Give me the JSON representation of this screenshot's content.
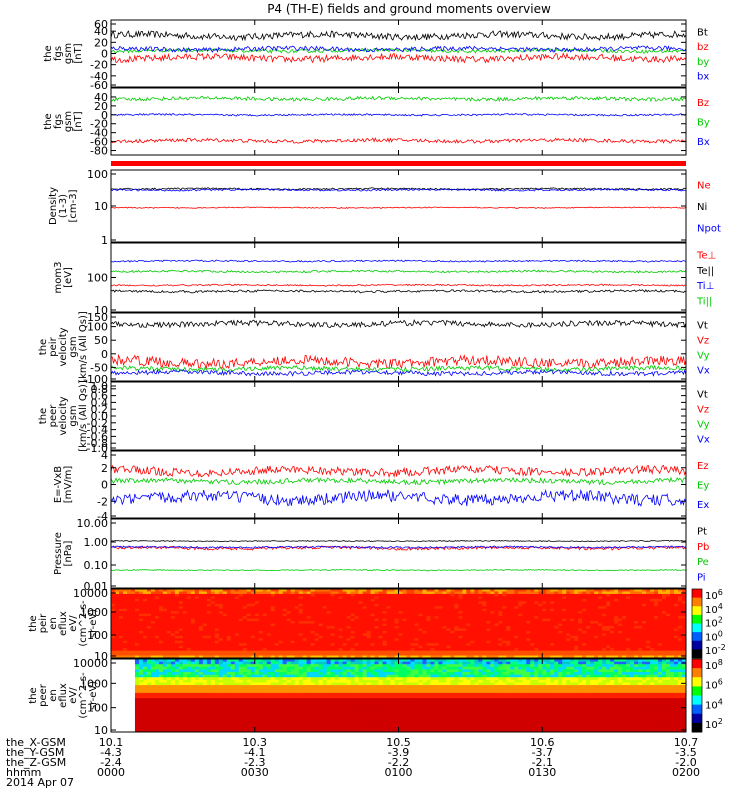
{
  "title": "P4 (TH-E) fields and ground moments overview",
  "chart_data": [
    {
      "id": "p1",
      "type": "line",
      "ylabel": [
        "the",
        "fgs",
        "gsm",
        "[nT]"
      ],
      "ylim": [
        -60,
        60
      ],
      "yticks": [
        "60",
        "40",
        "20",
        "0",
        "-20",
        "-40",
        "-60"
      ],
      "series": [
        {
          "name": "Bt",
          "color": "#000000",
          "level": 32,
          "noise": 6
        },
        {
          "name": "bz",
          "color": "#ff0000",
          "level": -8,
          "noise": 6
        },
        {
          "name": "by",
          "color": "#00cc00",
          "level": 5,
          "noise": 3
        },
        {
          "name": "bx",
          "color": "#0000ff",
          "level": 8,
          "noise": 4
        }
      ]
    },
    {
      "id": "p2",
      "type": "line",
      "ylabel": [
        "the",
        "fgs",
        "gsm",
        "[nT]"
      ],
      "ylim": [
        -90,
        60
      ],
      "yticks": [
        "40",
        "20",
        "0",
        "-20",
        "-40",
        "-60",
        "-80"
      ],
      "series": [
        {
          "name": "Bz",
          "color": "#ff0000",
          "level": -58,
          "noise": 4
        },
        {
          "name": "By",
          "color": "#00cc00",
          "level": 36,
          "noise": 4
        },
        {
          "name": "Bx",
          "color": "#0000ff",
          "level": 0,
          "noise": 2
        }
      ]
    },
    {
      "id": "p3",
      "type": "line",
      "log": true,
      "ylabel": [
        "Density",
        "(1-3)",
        "[cm-3]"
      ],
      "ylim": [
        1,
        100
      ],
      "yticks": [
        "100",
        "10",
        "1"
      ],
      "series": [
        {
          "name": "Ne",
          "color": "#ff0000",
          "level": 9,
          "noise": 0.3
        },
        {
          "name": "Ni",
          "color": "#000000",
          "level": 30,
          "noise": 1.5
        },
        {
          "name": "Npot",
          "color": "#0000ff",
          "level": 28,
          "noise": 1.5
        }
      ]
    },
    {
      "id": "p4",
      "type": "line",
      "log": true,
      "ylabel": [
        "mom3",
        "[eV]"
      ],
      "ylim": [
        10,
        1000
      ],
      "yticks": [
        "100",
        "10"
      ],
      "series": [
        {
          "name": "Te⊥",
          "color": "#ff0000",
          "level": 60,
          "noise": 3
        },
        {
          "name": "Te||",
          "color": "#000000",
          "level": 40,
          "noise": 3
        },
        {
          "name": "Ti⊥",
          "color": "#0000ff",
          "level": 300,
          "noise": 15
        },
        {
          "name": "Ti||",
          "color": "#00cc00",
          "level": 150,
          "noise": 10
        }
      ]
    },
    {
      "id": "p5",
      "type": "line",
      "ylabel": [
        "the",
        "peir",
        "velocity",
        "gsm",
        "[km/s (All Qs)]"
      ],
      "ylim": [
        -100,
        150
      ],
      "yticks": [
        "150",
        "100",
        "50",
        "0",
        "-50",
        "-100"
      ],
      "series": [
        {
          "name": "Vt",
          "color": "#000000",
          "level": 110,
          "noise": 10
        },
        {
          "name": "Vz",
          "color": "#ff0000",
          "level": -30,
          "noise": 18
        },
        {
          "name": "Vy",
          "color": "#00cc00",
          "level": -55,
          "noise": 8
        },
        {
          "name": "Vx",
          "color": "#0000ff",
          "level": -70,
          "noise": 8
        }
      ]
    },
    {
      "id": "p6",
      "type": "line",
      "ylabel": [
        "the",
        "peer",
        "velocity",
        "gsm",
        "[km/s (All Qs)]"
      ],
      "ylim": [
        -1,
        1
      ],
      "yticks": [
        "1.0",
        "0.8",
        "0.6",
        "0.4",
        "0.2",
        "0.0",
        "-0.2",
        "-0.4",
        "-0.6",
        "-0.8",
        "-1.0"
      ],
      "series": [
        {
          "name": "Vt",
          "color": "#000000"
        },
        {
          "name": "Vz",
          "color": "#ff0000"
        },
        {
          "name": "Vy",
          "color": "#00cc00"
        },
        {
          "name": "Vx",
          "color": "#0000ff"
        }
      ]
    },
    {
      "id": "p7",
      "type": "line",
      "ylabel": [
        "E=-VxB",
        "[mV/m]"
      ],
      "ylim": [
        -4,
        4
      ],
      "yticks": [
        "4",
        "2",
        "0",
        "-2",
        "-4"
      ],
      "series": [
        {
          "name": "Ez",
          "color": "#ff0000",
          "level": 1.6,
          "noise": 0.5
        },
        {
          "name": "Ey",
          "color": "#00cc00",
          "level": 0.4,
          "noise": 0.3
        },
        {
          "name": "Ex",
          "color": "#0000ff",
          "level": -1.6,
          "noise": 0.7
        }
      ]
    },
    {
      "id": "p8",
      "type": "line",
      "log": true,
      "ylabel": [
        "Pressure",
        "[nPa]"
      ],
      "ylim": [
        0.01,
        10
      ],
      "yticks": [
        "10.00",
        "1.00",
        "0.10",
        "0.01"
      ],
      "series": [
        {
          "name": "Pt",
          "color": "#000000",
          "level": 1.1,
          "noise": 0.05
        },
        {
          "name": "Pb",
          "color": "#ff0000",
          "level": 0.55,
          "noise": 0.08
        },
        {
          "name": "Pe",
          "color": "#00cc00",
          "level": 0.06,
          "noise": 0.003
        },
        {
          "name": "Pi",
          "color": "#0000ff",
          "level": 0.6,
          "noise": 0.05
        }
      ]
    },
    {
      "id": "p9",
      "type": "heatmap",
      "ylabel": [
        "the",
        "peir",
        "en",
        "eflux",
        "eV/",
        "(cm^2-s-",
        "sr-eV)"
      ],
      "ylim": [
        10,
        10000
      ],
      "yticks": [
        "10000",
        "1000",
        "100",
        "10"
      ],
      "colorbar": {
        "ticks": [
          "10^6",
          "10^4",
          "10^2",
          "10^0",
          "10^-2"
        ]
      }
    },
    {
      "id": "p10",
      "type": "heatmap",
      "ylabel": [
        "the",
        "peer",
        "en",
        "eflux",
        "eV/",
        "(cm^2-s-",
        "sr-eV)"
      ],
      "ylim": [
        10,
        10000
      ],
      "yticks": [
        "10000",
        "1000",
        "100",
        "10"
      ],
      "colorbar": {
        "ticks": [
          "10^8",
          "10^6",
          "10^4",
          "10^2"
        ]
      }
    }
  ],
  "x_axis": {
    "range": [
      0,
      120
    ],
    "rows": [
      {
        "label": "the_X-GSM",
        "values": [
          "10.1",
          "10.3",
          "10.5",
          "10.6",
          "10.7"
        ]
      },
      {
        "label": "the_Y-GSM",
        "values": [
          "-4.3",
          "-4.1",
          "-3.9",
          "-3.7",
          "-3.5"
        ]
      },
      {
        "label": "the_Z-GSM",
        "values": [
          "-2.4",
          "-2.3",
          "-2.2",
          "-2.1",
          "-2.0"
        ]
      },
      {
        "label": "hhmm",
        "values": [
          "0000",
          "0030",
          "0100",
          "0130",
          "0200"
        ]
      }
    ],
    "date": "2014 Apr 07"
  }
}
